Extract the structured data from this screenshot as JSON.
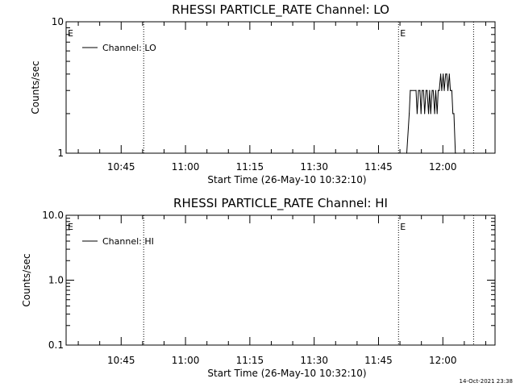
{
  "timestamp": "14-Oct-2021 23:38",
  "chart_data": [
    {
      "type": "line",
      "title": "RHESSI PARTICLE_RATE Channel: LO",
      "xlabel": "Start Time (26-May-10 10:32:10)",
      "ylabel": "Counts/sec",
      "yscale": "log",
      "ylim": [
        1,
        10
      ],
      "y_ticks": [
        1,
        10
      ],
      "y_tick_labels": [
        "1",
        "10"
      ],
      "xlim": [
        "10:32:10",
        "12:12:10"
      ],
      "x_ticks": [
        "10:45",
        "11:00",
        "11:15",
        "11:30",
        "11:45",
        "12:00"
      ],
      "vertical_markers": [
        "10:50:15",
        "11:49:40",
        "12:07:10"
      ],
      "event_labels": [
        {
          "text": "E",
          "at": "10:32:10"
        },
        {
          "text": "E",
          "at": "11:49:40"
        }
      ],
      "legend": {
        "label": "Channel: LO",
        "position": "top-left"
      },
      "series": [
        {
          "x": [
            "11:51:35",
            "11:52:10",
            "11:52:25",
            "11:53:45",
            "11:54:00",
            "11:54:20",
            "11:54:40",
            "11:54:55",
            "11:55:10",
            "11:55:30",
            "11:55:45",
            "11:56:05",
            "11:56:20",
            "11:56:40",
            "11:56:55",
            "11:57:10",
            "11:57:30",
            "11:57:45",
            "11:58:05",
            "11:58:20",
            "11:58:40",
            "11:58:55",
            "11:59:10",
            "11:59:30",
            "11:59:45",
            "12:00:05",
            "12:00:20",
            "12:00:40",
            "12:00:55",
            "12:01:10",
            "12:01:30",
            "12:01:45",
            "12:02:05",
            "12:02:20",
            "12:02:35",
            "12:02:55",
            "12:03:05"
          ],
          "values": [
            1,
            2,
            3,
            3,
            2,
            3,
            3,
            2,
            3,
            3,
            2,
            3,
            3,
            2,
            3,
            2,
            3,
            3,
            2,
            3,
            2,
            3,
            3,
            4,
            3,
            4,
            3,
            4,
            4,
            3,
            4,
            3,
            3,
            2,
            2,
            1,
            1
          ]
        }
      ]
    },
    {
      "type": "line",
      "title": "RHESSI PARTICLE_RATE Channel: HI",
      "xlabel": "Start Time (26-May-10 10:32:10)",
      "ylabel": "Counts/sec",
      "yscale": "log",
      "ylim": [
        0.1,
        10
      ],
      "y_ticks": [
        0.1,
        1,
        10
      ],
      "y_tick_labels": [
        "0.1",
        "1.0",
        "10.0"
      ],
      "xlim": [
        "10:32:10",
        "12:12:10"
      ],
      "x_ticks": [
        "10:45",
        "11:00",
        "11:15",
        "11:30",
        "11:45",
        "12:00"
      ],
      "vertical_markers": [
        "10:50:15",
        "11:49:40",
        "12:07:10"
      ],
      "event_labels": [
        {
          "text": "E",
          "at": "10:32:10"
        },
        {
          "text": "E",
          "at": "11:49:40"
        }
      ],
      "legend": {
        "label": "Channel: HI",
        "position": "top-left"
      },
      "series": [
        {
          "x": [],
          "values": []
        }
      ]
    }
  ]
}
